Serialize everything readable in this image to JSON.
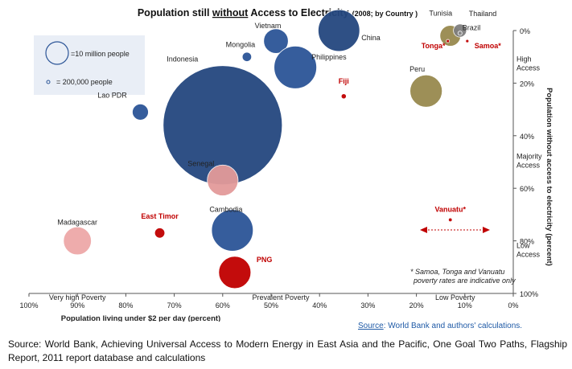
{
  "chart_data": {
    "type": "bubble",
    "title": "Population still ",
    "title_emph": "without",
    "title_rest": " Access to Electricity",
    "title_note": "(2008; by Country )",
    "xlabel": "Population living under $2 per day (percent)",
    "ylabel": "Population without access to electricity (percent)",
    "ylabel_emph": "without",
    "xlim": [
      100,
      0
    ],
    "ylim": [
      0,
      100
    ],
    "x_ticks": [
      "100%",
      "90%",
      "80%",
      "70%",
      "60%",
      "50%",
      "40%",
      "30%",
      "20%",
      "10%",
      "0%"
    ],
    "y_ticks": [
      "0%",
      "20%",
      "40%",
      "60%",
      "80%",
      "100%"
    ],
    "x_annotations": [
      {
        "text": "Very high Poverty",
        "x": 90
      },
      {
        "text": "Prevalent Poverty",
        "x": 48
      },
      {
        "text": "Low Poverty",
        "x": 12
      }
    ],
    "y_annotations": [
      {
        "lines": [
          "High",
          "Access"
        ],
        "y": 16
      },
      {
        "lines": [
          "Majority",
          "Access"
        ],
        "y": 53
      },
      {
        "lines": [
          "Low",
          "Access"
        ],
        "y": 87
      }
    ],
    "legend": {
      "large": {
        "label": "=10 million  people",
        "population_m": 10
      },
      "small": {
        "label": "= 200,000  people",
        "population_m": 0.2
      }
    },
    "note": [
      "* Samoa, Tonga and Vanuatu",
      "poverty rates are indicative only"
    ],
    "points": [
      {
        "name": "China",
        "x": 36,
        "y": 0,
        "pop_m": 10,
        "color": "#24477f"
      },
      {
        "name": "Vietnam",
        "x": 49,
        "y": 4,
        "pop_m": 3.5,
        "color": "#2c5597"
      },
      {
        "name": "Mongolia",
        "x": 55,
        "y": 10,
        "pop_m": 0.5,
        "color": "#2c5597"
      },
      {
        "name": "Philippines",
        "x": 45,
        "y": 14,
        "pop_m": 10.5,
        "color": "#2c5597"
      },
      {
        "name": "Indonesia",
        "x": 60,
        "y": 36,
        "pop_m": 82,
        "color": "#24477f"
      },
      {
        "name": "Lao PDR",
        "x": 77,
        "y": 31,
        "pop_m": 1.5,
        "color": "#2c5597"
      },
      {
        "name": "Cambodia",
        "x": 58,
        "y": 76,
        "pop_m": 10,
        "color": "#2c5597"
      },
      {
        "name": "Senegal",
        "x": 60,
        "y": 57,
        "pop_m": 5.5,
        "color": "#e39a9a"
      },
      {
        "name": "Madagascar",
        "x": 90,
        "y": 80,
        "pop_m": 4.5,
        "color": "#eea8a8"
      },
      {
        "name": "East Timor",
        "x": 73,
        "y": 77,
        "pop_m": 0.6,
        "color": "#c00000"
      },
      {
        "name": "PNG",
        "x": 57.5,
        "y": 92,
        "pop_m": 6,
        "color": "#c00000"
      },
      {
        "name": "Fiji",
        "x": 35,
        "y": 25,
        "pop_m": 0.15,
        "color": "#c00000"
      },
      {
        "name": "Tunisia",
        "x": 13,
        "y": 2,
        "pop_m": 2.5,
        "color": "#988a4f"
      },
      {
        "name": "Thailand",
        "x": 11,
        "y": 0,
        "pop_m": 1,
        "color": "#7f7f7f"
      },
      {
        "name": "Brazil",
        "x": 11,
        "y": 1,
        "pop_m": 0.1,
        "color": "#888"
      },
      {
        "name": "Peru",
        "x": 18,
        "y": 23,
        "pop_m": 6,
        "color": "#988a4f"
      },
      {
        "name": "Tonga*",
        "x": 13.5,
        "y": 4,
        "pop_m": 0.05,
        "color": "#c00000"
      },
      {
        "name": "Samoa*",
        "x": 9.5,
        "y": 4,
        "pop_m": 0.05,
        "color": "#c00000"
      },
      {
        "name": "Vanuatu*",
        "x": 13,
        "y": 72,
        "pop_m": 0.08,
        "color": "#c00000"
      }
    ]
  },
  "source_link_label": "Source",
  "source_link_rest": ": World Bank and authors' calculations.",
  "footer": "Source: World Bank, Achieving Universal Access to Modern Energy in East Asia and the Pacific, One Goal Two Paths, Flagship Report, 2011 report database and calculations"
}
